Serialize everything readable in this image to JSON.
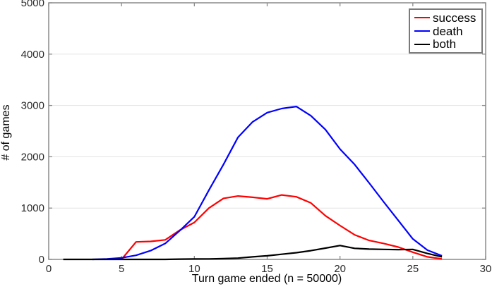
{
  "figure": {
    "title": ""
  },
  "chart_data": {
    "type": "line",
    "title": "",
    "xlabel": "Turn game ended (n = 50000)",
    "ylabel": "# of games",
    "xlim": [
      0,
      30
    ],
    "ylim": [
      0,
      5000
    ],
    "xticks": [
      0,
      5,
      10,
      15,
      20,
      25,
      30
    ],
    "yticks": [
      0,
      1000,
      2000,
      3000,
      4000,
      5000
    ],
    "grid": "horizontal-only",
    "legend_position": "top-right-inside",
    "colors": {
      "success": "#ff0000",
      "death": "#0000ff",
      "both": "#000000",
      "axis_box": "#8a8a8a",
      "gridline": "#e3e3e3",
      "tick_label": "#2b2b2b",
      "axis_label": "#000000",
      "legend_border": "#7a7a7a",
      "background": "#ffffff"
    },
    "series": [
      {
        "name": "success",
        "color": "#ff0000",
        "x_start": 5,
        "x_step": 1,
        "values": [
          0,
          340,
          350,
          380,
          570,
          720,
          1000,
          1190,
          1235,
          1210,
          1180,
          1255,
          1220,
          1100,
          850,
          660,
          480,
          370,
          310,
          240,
          140,
          50,
          10
        ]
      },
      {
        "name": "death",
        "color": "#0000ff",
        "x_start": 3,
        "x_step": 1,
        "values": [
          0,
          10,
          30,
          80,
          170,
          310,
          560,
          830,
          1350,
          1850,
          2380,
          2680,
          2860,
          2940,
          2980,
          2800,
          2530,
          2150,
          1850,
          1490,
          1120,
          760,
          400,
          180,
          70
        ]
      },
      {
        "name": "both",
        "color": "#000000",
        "x_start": 1,
        "x_step": 1,
        "values": [
          0,
          0,
          0,
          0,
          0,
          0,
          0,
          0,
          5,
          8,
          10,
          15,
          25,
          50,
          70,
          100,
          130,
          170,
          220,
          270,
          215,
          200,
          195,
          190,
          195,
          115,
          50
        ]
      }
    ]
  }
}
